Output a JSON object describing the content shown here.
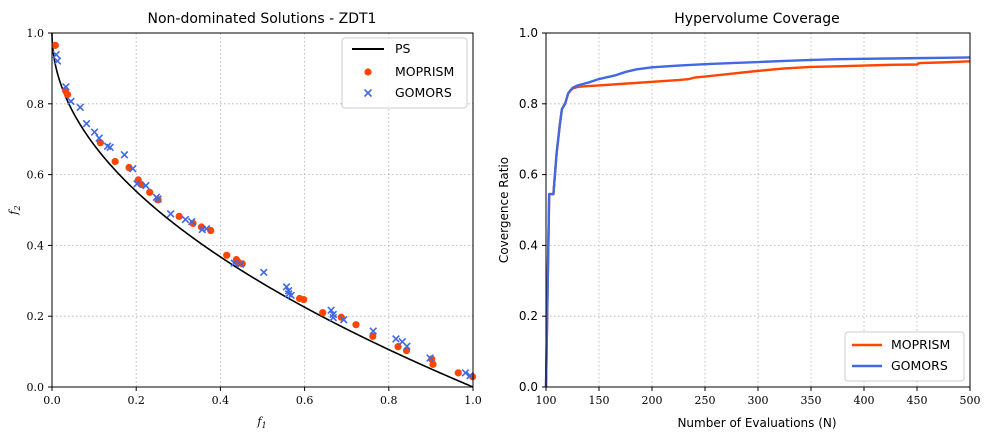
{
  "colors": {
    "ps": "#000000",
    "moprism": "#FF4500",
    "gomors": "#4169E1",
    "grid": "#b0b0b0",
    "legend_border": "#cccccc"
  },
  "chart_data": [
    {
      "type": "scatter",
      "title": "Non-dominated Solutions - ZDT1",
      "xlabel": "f1",
      "ylabel": "f2",
      "xlim": [
        0.0,
        1.0
      ],
      "ylim": [
        0.0,
        1.0
      ],
      "xticks": [
        "0.0",
        "0.2",
        "0.4",
        "0.6",
        "0.8",
        "1.0"
      ],
      "yticks": [
        "0.0",
        "0.2",
        "0.4",
        "0.6",
        "0.8",
        "1.0"
      ],
      "grid": true,
      "legend_position": "top-right",
      "series": [
        {
          "name": "PS",
          "marker": "line",
          "formula": "f2 = 1 - sqrt(f1)"
        },
        {
          "name": "MOPRISM",
          "marker": "circle",
          "points": [
            [
              0.008,
              0.965
            ],
            [
              0.032,
              0.838
            ],
            [
              0.037,
              0.826
            ],
            [
              0.115,
              0.69
            ],
            [
              0.15,
              0.637
            ],
            [
              0.183,
              0.62
            ],
            [
              0.205,
              0.585
            ],
            [
              0.212,
              0.572
            ],
            [
              0.232,
              0.55
            ],
            [
              0.252,
              0.529
            ],
            [
              0.302,
              0.482
            ],
            [
              0.335,
              0.462
            ],
            [
              0.355,
              0.452
            ],
            [
              0.377,
              0.442
            ],
            [
              0.415,
              0.372
            ],
            [
              0.438,
              0.36
            ],
            [
              0.443,
              0.352
            ],
            [
              0.452,
              0.348
            ],
            [
              0.588,
              0.25
            ],
            [
              0.598,
              0.247
            ],
            [
              0.643,
              0.21
            ],
            [
              0.687,
              0.197
            ],
            [
              0.722,
              0.176
            ],
            [
              0.762,
              0.143
            ],
            [
              0.822,
              0.114
            ],
            [
              0.842,
              0.103
            ],
            [
              0.902,
              0.079
            ],
            [
              0.905,
              0.064
            ],
            [
              0.965,
              0.04
            ],
            [
              0.999,
              0.029
            ]
          ]
        },
        {
          "name": "GOMORS",
          "marker": "x",
          "points": [
            [
              0.01,
              0.939
            ],
            [
              0.013,
              0.921
            ],
            [
              0.033,
              0.848
            ],
            [
              0.045,
              0.807
            ],
            [
              0.067,
              0.79
            ],
            [
              0.082,
              0.744
            ],
            [
              0.101,
              0.72
            ],
            [
              0.112,
              0.703
            ],
            [
              0.132,
              0.68
            ],
            [
              0.138,
              0.677
            ],
            [
              0.172,
              0.656
            ],
            [
              0.192,
              0.617
            ],
            [
              0.202,
              0.574
            ],
            [
              0.223,
              0.569
            ],
            [
              0.248,
              0.536
            ],
            [
              0.252,
              0.531
            ],
            [
              0.282,
              0.489
            ],
            [
              0.317,
              0.473
            ],
            [
              0.332,
              0.467
            ],
            [
              0.357,
              0.445
            ],
            [
              0.367,
              0.447
            ],
            [
              0.433,
              0.35
            ],
            [
              0.448,
              0.347
            ],
            [
              0.503,
              0.324
            ],
            [
              0.557,
              0.283
            ],
            [
              0.562,
              0.272
            ],
            [
              0.562,
              0.263
            ],
            [
              0.568,
              0.259
            ],
            [
              0.663,
              0.217
            ],
            [
              0.668,
              0.205
            ],
            [
              0.668,
              0.196
            ],
            [
              0.693,
              0.19
            ],
            [
              0.763,
              0.158
            ],
            [
              0.817,
              0.136
            ],
            [
              0.832,
              0.128
            ],
            [
              0.843,
              0.115
            ],
            [
              0.898,
              0.082
            ],
            [
              0.982,
              0.04
            ],
            [
              0.993,
              0.032
            ]
          ]
        }
      ]
    },
    {
      "type": "line",
      "title": "Hypervolume Coverage",
      "xlabel": "Number of Evaluations (N)",
      "ylabel": "Covergence Ratio",
      "xlim": [
        100,
        500
      ],
      "ylim": [
        0.0,
        1.0
      ],
      "xticks": [
        "100",
        "150",
        "200",
        "250",
        "300",
        "350",
        "400",
        "450",
        "500"
      ],
      "yticks": [
        "0.0",
        "0.2",
        "0.4",
        "0.6",
        "0.8",
        "1.0"
      ],
      "grid": true,
      "legend_position": "bottom-right",
      "series": [
        {
          "name": "MOPRISM",
          "x": [
            100,
            103,
            104,
            107,
            110,
            113,
            115,
            118,
            121,
            125,
            130,
            140,
            150,
            175,
            200,
            225,
            235,
            240,
            250,
            275,
            300,
            325,
            350,
            375,
            400,
            425,
            450,
            452,
            475,
            500
          ],
          "y": [
            0.0,
            0.545,
            0.545,
            0.545,
            0.66,
            0.74,
            0.785,
            0.8,
            0.83,
            0.843,
            0.848,
            0.85,
            0.852,
            0.857,
            0.862,
            0.867,
            0.87,
            0.874,
            0.877,
            0.885,
            0.893,
            0.9,
            0.904,
            0.906,
            0.908,
            0.91,
            0.911,
            0.915,
            0.917,
            0.92
          ]
        },
        {
          "name": "GOMORS",
          "x": [
            100,
            103,
            104,
            107,
            110,
            113,
            115,
            118,
            121,
            125,
            130,
            140,
            150,
            165,
            175,
            185,
            200,
            225,
            250,
            275,
            300,
            325,
            350,
            375,
            400,
            425,
            450,
            475,
            500
          ],
          "y": [
            0.0,
            0.545,
            0.545,
            0.545,
            0.66,
            0.74,
            0.785,
            0.8,
            0.83,
            0.845,
            0.852,
            0.86,
            0.87,
            0.88,
            0.89,
            0.897,
            0.903,
            0.908,
            0.912,
            0.915,
            0.918,
            0.921,
            0.924,
            0.926,
            0.927,
            0.928,
            0.929,
            0.93,
            0.931
          ]
        }
      ]
    }
  ]
}
